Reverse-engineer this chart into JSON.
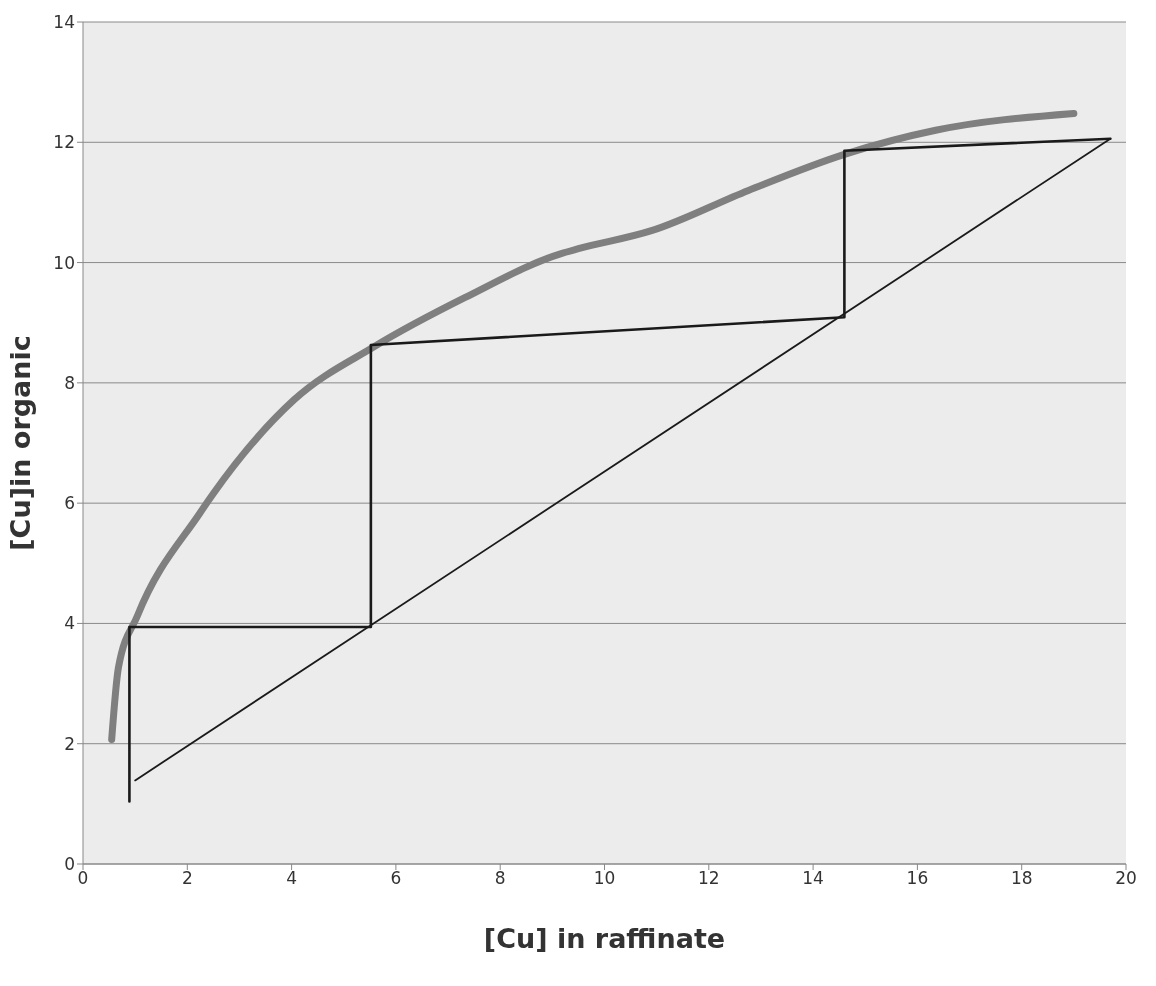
{
  "chart_data": {
    "type": "line",
    "xlabel": "[Cu] in raffinate",
    "ylabel": "[Cu]in organic",
    "xlim": [
      0,
      20
    ],
    "xticks": [
      0,
      2,
      4,
      6,
      8,
      10,
      12,
      14,
      16,
      18,
      20
    ],
    "ylim": [
      0,
      14
    ],
    "yticks": [
      0,
      2,
      4,
      6,
      8,
      10,
      12,
      14
    ],
    "grid": "y",
    "marker": "none",
    "line_style": "solid",
    "series": [
      {
        "type": "line",
        "color": "#7f7f7f",
        "x": [
          0.55,
          0.68,
          1.04,
          2.23,
          2.5,
          4.05,
          5.58,
          7.33,
          9.17,
          9.5,
          10.9,
          12.76,
          14.6,
          16.35,
          19.0
        ],
        "values": [
          2.07,
          3.27,
          4.12,
          5.82,
          6.16,
          7.72,
          8.6,
          9.42,
          10.15,
          10.23,
          10.53,
          11.2,
          11.8,
          12.2,
          12.48
        ]
      },
      {
        "type": "line",
        "color": "#1a1a1a",
        "x": [
          1.0,
          19.7
        ],
        "values": [
          1.39,
          12.06
        ]
      },
      {
        "type": "line",
        "color": "#1a1a1a",
        "x": [
          0.89,
          0.89,
          5.52,
          5.52,
          14.6,
          14.6,
          19.7
        ],
        "values": [
          1.04,
          3.94,
          3.94,
          8.63,
          9.09,
          11.86,
          12.06
        ]
      }
    ]
  }
}
